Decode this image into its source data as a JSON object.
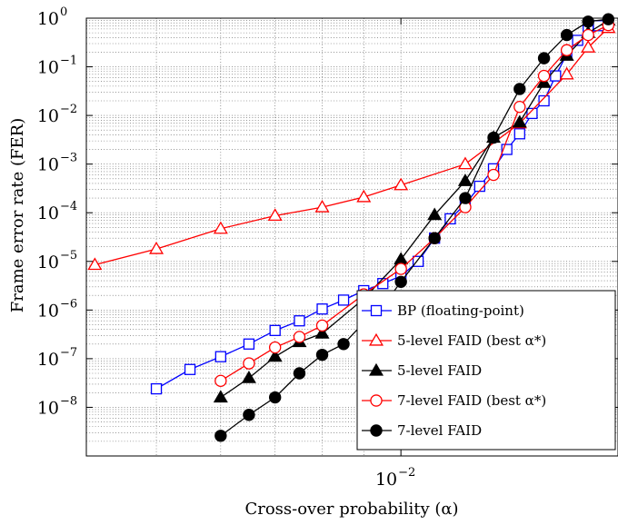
{
  "chart_data": {
    "type": "line",
    "xlabel": "Cross-over probability (α)",
    "ylabel": "Frame error rate (FER)",
    "x_scale": "log",
    "y_scale": "log",
    "xlim": [
      0.0041,
      0.0185
    ],
    "ylim": [
      1e-09,
      1
    ],
    "x_ticks": [
      {
        "base": "10",
        "exp": "−2",
        "value": 0.01
      }
    ],
    "y_ticks": [
      {
        "base": "10",
        "exp": "0",
        "value": 1
      },
      {
        "base": "10",
        "exp": "−1",
        "value": 0.1
      },
      {
        "base": "10",
        "exp": "−2",
        "value": 0.01
      },
      {
        "base": "10",
        "exp": "−3",
        "value": 0.001
      },
      {
        "base": "10",
        "exp": "−4",
        "value": 0.0001
      },
      {
        "base": "10",
        "exp": "−5",
        "value": 1e-05
      },
      {
        "base": "10",
        "exp": "−6",
        "value": 1e-06
      },
      {
        "base": "10",
        "exp": "−7",
        "value": 1e-07
      },
      {
        "base": "10",
        "exp": "−8",
        "value": 1e-08
      }
    ],
    "grid": true,
    "legend_position": "bottom-right",
    "series": [
      {
        "name": "BP (floating-point)",
        "color": "#0000ff",
        "marker": "square-open",
        "x": [
          0.005,
          0.0055,
          0.006,
          0.0065,
          0.007,
          0.0075,
          0.008,
          0.0085,
          0.009,
          0.0095,
          0.01,
          0.0105,
          0.011,
          0.0115,
          0.012,
          0.0125,
          0.013,
          0.0135,
          0.014,
          0.0145,
          0.015,
          0.0155,
          0.016,
          0.0165,
          0.017,
          0.0175,
          0.018
        ],
        "values": [
          2.4e-08,
          6e-08,
          1.1e-07,
          2e-07,
          3.8e-07,
          6e-07,
          1.05e-06,
          1.6e-06,
          2.5e-06,
          3.5e-06,
          5e-06,
          1e-05,
          3e-05,
          7.5e-05,
          0.00015,
          0.00035,
          0.0008,
          0.002,
          0.0042,
          0.011,
          0.02,
          0.065,
          0.18,
          0.35,
          0.55,
          0.7,
          0.82
        ]
      },
      {
        "name": "5-level FAID (best α*)",
        "color": "#ff0000",
        "marker": "triangle-open",
        "x": [
          0.0042,
          0.005,
          0.006,
          0.007,
          0.008,
          0.009,
          0.01,
          0.012,
          0.014,
          0.016,
          0.017,
          0.018
        ],
        "values": [
          8.5e-06,
          1.8e-05,
          4.7e-05,
          8.7e-05,
          0.00013,
          0.00021,
          0.00037,
          0.001,
          0.0069,
          0.07,
          0.25,
          0.63
        ]
      },
      {
        "name": "5-level FAID",
        "color": "#000000",
        "marker": "triangle-filled",
        "x": [
          0.006,
          0.0065,
          0.007,
          0.0075,
          0.008,
          0.009,
          0.01,
          0.011,
          0.012,
          0.013,
          0.014,
          0.015,
          0.016,
          0.017,
          0.018
        ],
        "values": [
          1.6e-08,
          4e-08,
          1.1e-07,
          2.2e-07,
          3.3e-07,
          1.7e-06,
          1.1e-05,
          9e-05,
          0.00045,
          0.0035,
          0.0072,
          0.047,
          0.17,
          0.5,
          0.9
        ]
      },
      {
        "name": "7-level FAID (best α*)",
        "color": "#ff0000",
        "marker": "circle-open",
        "x": [
          0.006,
          0.0065,
          0.007,
          0.0075,
          0.008,
          0.009,
          0.01,
          0.011,
          0.012,
          0.013,
          0.014,
          0.015,
          0.016,
          0.017,
          0.018
        ],
        "values": [
          3.5e-08,
          8e-08,
          1.7e-07,
          2.8e-07,
          4.8e-07,
          2.1e-06,
          7e-06,
          3e-05,
          0.00013,
          0.0006,
          0.015,
          0.065,
          0.22,
          0.45,
          0.72
        ]
      },
      {
        "name": "7-level FAID",
        "color": "#000000",
        "marker": "circle-filled",
        "x": [
          0.006,
          0.0065,
          0.007,
          0.0075,
          0.008,
          0.0085,
          0.009,
          0.0095,
          0.01,
          0.011,
          0.012,
          0.013,
          0.014,
          0.015,
          0.016,
          0.017,
          0.018
        ],
        "values": [
          2.6e-09,
          7e-09,
          1.6e-08,
          5e-08,
          1.2e-07,
          2e-07,
          5.5e-07,
          1.2e-06,
          3.8e-06,
          3e-05,
          0.0002,
          0.0035,
          0.035,
          0.15,
          0.45,
          0.85,
          0.95
        ]
      }
    ]
  }
}
